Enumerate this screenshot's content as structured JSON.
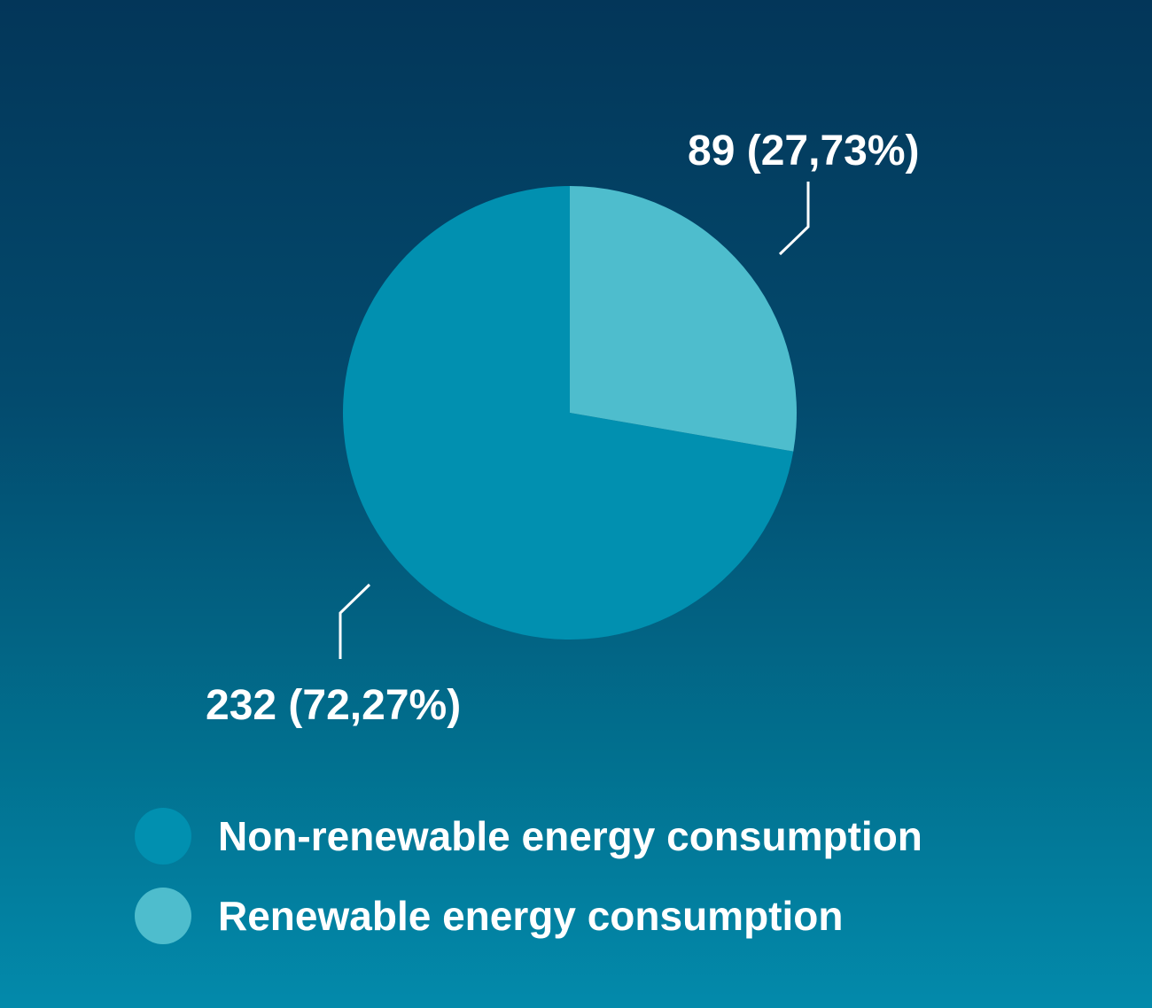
{
  "chart_data": {
    "type": "pie",
    "categories": [
      "Non-renewable energy consumption",
      "Renewable energy consumption"
    ],
    "values": [
      232,
      89
    ],
    "percent_labels": [
      "72,27%",
      "27,73%"
    ],
    "data_labels": [
      "232 (72,27%)",
      "89 (27,73%)"
    ],
    "colors": [
      "#0190b0",
      "#4ebdcd"
    ],
    "title": "",
    "legend_placement": "bottom-left"
  },
  "legend": {
    "items": [
      {
        "label": "Non-renewable energy consumption",
        "color": "#0190b0"
      },
      {
        "label": "Renewable energy consumption",
        "color": "#4ebdcd"
      }
    ]
  },
  "colors": {
    "background_top": "#033659",
    "background_bottom": "#038aab",
    "text": "#ffffff"
  }
}
